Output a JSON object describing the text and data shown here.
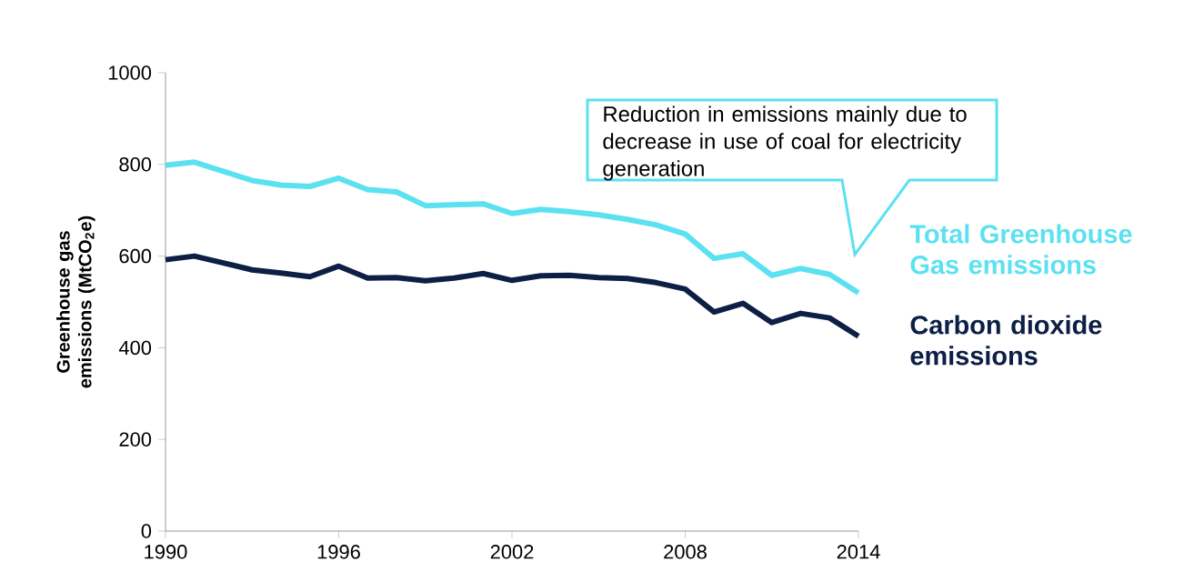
{
  "chart_data": {
    "type": "line",
    "ylabel": "Greenhouse gas emissions (MtCO$_{2}$e)",
    "x": [
      1990,
      1991,
      1992,
      1993,
      1994,
      1995,
      1996,
      1997,
      1998,
      1999,
      2000,
      2001,
      2002,
      2003,
      2004,
      2005,
      2006,
      2007,
      2008,
      2009,
      2010,
      2011,
      2012,
      2013,
      2014
    ],
    "series": [
      {
        "name": "Total Greenhouse Gas emissions",
        "color": "#5ce1f0",
        "values": [
          798,
          805,
          785,
          765,
          755,
          752,
          770,
          745,
          740,
          710,
          712,
          714,
          693,
          702,
          697,
          690,
          680,
          668,
          648,
          595,
          605,
          558,
          573,
          560,
          520
        ]
      },
      {
        "name": "Carbon dioxide emissions",
        "color": "#0d1f45",
        "values": [
          592,
          600,
          585,
          570,
          563,
          555,
          578,
          552,
          553,
          546,
          552,
          562,
          547,
          557,
          558,
          553,
          551,
          542,
          528,
          478,
          497,
          455,
          475,
          465,
          425
        ]
      }
    ],
    "xlim": [
      1990,
      2014
    ],
    "ylim": [
      0,
      1000
    ],
    "xticks": [
      1990,
      1996,
      2002,
      2008,
      2014
    ],
    "yticks": [
      0,
      200,
      400,
      600,
      800,
      1000
    ],
    "grid": false,
    "marker": "none",
    "line_style": "solid",
    "annotations": [
      "Reduction in emissions mainly due to decrease in use of coal for electricity generation"
    ]
  }
}
